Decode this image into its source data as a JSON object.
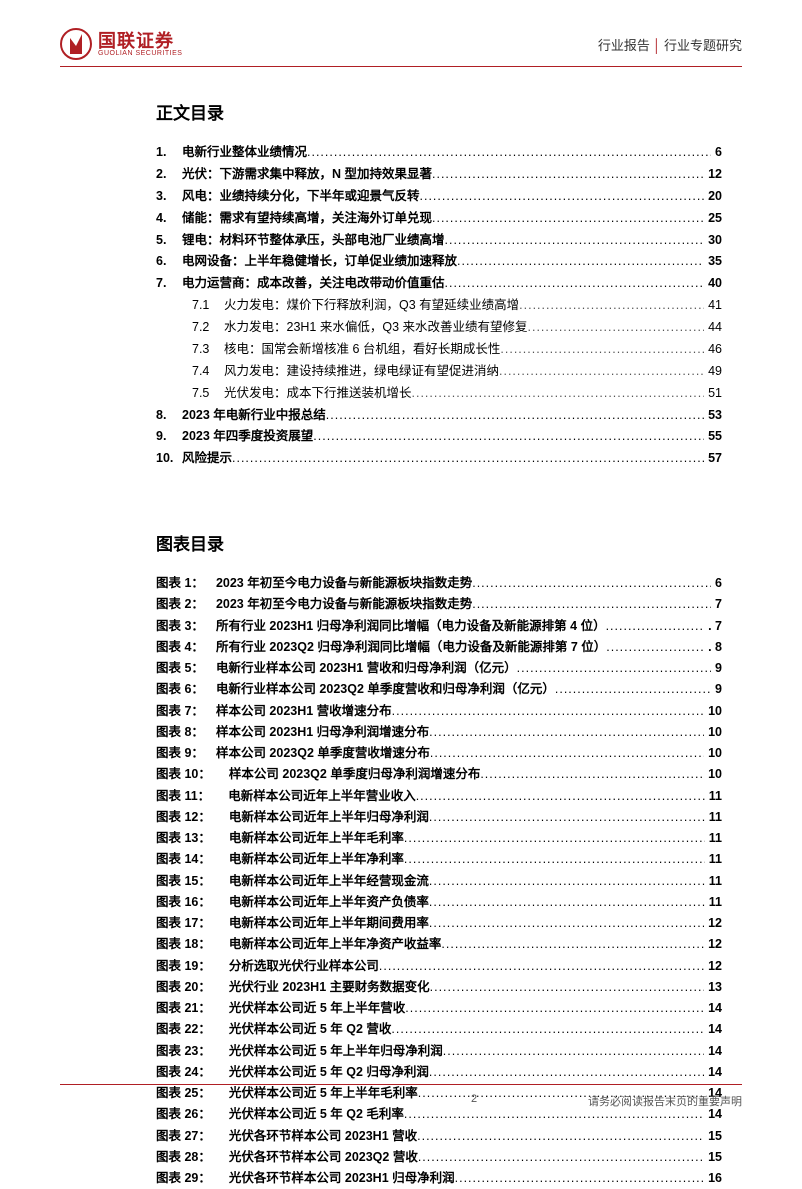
{
  "header": {
    "logo_cn": "国联证券",
    "logo_en": "GUOLIAN SECURITIES",
    "right_a": "行业报告",
    "right_b": "行业专题研究",
    "logo_color": "#b01f24"
  },
  "toc": {
    "title": "正文目录",
    "items": [
      {
        "num": "1.",
        "label": "电新行业整体业绩情况",
        "page": "6",
        "sub": false
      },
      {
        "num": "2.",
        "label": "光伏：下游需求集中释放，N 型加持效果显著",
        "page": "12",
        "sub": false
      },
      {
        "num": "3.",
        "label": "风电：业绩持续分化，下半年或迎景气反转",
        "page": "20",
        "sub": false
      },
      {
        "num": "4.",
        "label": "储能：需求有望持续高增，关注海外订单兑现",
        "page": "25",
        "sub": false
      },
      {
        "num": "5.",
        "label": "锂电：材料环节整体承压，头部电池厂业绩高增",
        "page": "30",
        "sub": false
      },
      {
        "num": "6.",
        "label": "电网设备：上半年稳健增长，订单促业绩加速释放",
        "page": "35",
        "sub": false
      },
      {
        "num": "7.",
        "label": "电力运营商：成本改善，关注电改带动价值重估",
        "page": "40",
        "sub": false
      },
      {
        "num": "7.1",
        "label": "火力发电：煤价下行释放利润，Q3 有望延续业绩高增",
        "page": "41",
        "sub": true
      },
      {
        "num": "7.2",
        "label": "水力发电：23H1 来水偏低，Q3 来水改善业绩有望修复",
        "page": "44",
        "sub": true
      },
      {
        "num": "7.3",
        "label": "核电：国常会新增核准 6 台机组，看好长期成长性",
        "page": "46",
        "sub": true
      },
      {
        "num": "7.4",
        "label": "风力发电：建设持续推进，绿电绿证有望促进消纳",
        "page": "49",
        "sub": true
      },
      {
        "num": "7.5",
        "label": "光伏发电：成本下行推送装机增长",
        "page": "51",
        "sub": true
      },
      {
        "num": "8.",
        "label": "2023 年电新行业中报总结",
        "page": "53",
        "sub": false
      },
      {
        "num": "9.",
        "label": "2023 年四季度投资展望",
        "page": "55",
        "sub": false
      },
      {
        "num": "10.",
        "label": "风险提示",
        "page": "57",
        "sub": false
      }
    ]
  },
  "figures": {
    "title": "图表目录",
    "items": [
      {
        "key": "图表 1：",
        "label": "2023 年初至今电力设备与新能源板块指数走势",
        "page": "6"
      },
      {
        "key": "图表 2：",
        "label": "2023 年初至今电力设备与新能源板块指数走势",
        "page": "7"
      },
      {
        "key": "图表 3：",
        "label": "所有行业 2023H1 归母净利润同比增幅（电力设备及新能源排第 4 位）",
        "page": ". 7"
      },
      {
        "key": "图表 4：",
        "label": "所有行业 2023Q2 归母净利润同比增幅（电力设备及新能源排第 7 位）",
        "page": ". 8"
      },
      {
        "key": "图表 5：",
        "label": "电新行业样本公司 2023H1 营收和归母净利润（亿元）",
        "page": "9"
      },
      {
        "key": "图表 6：",
        "label": "电新行业样本公司 2023Q2 单季度营收和归母净利润（亿元）",
        "page": "9"
      },
      {
        "key": "图表 7：",
        "label": "样本公司 2023H1 营收增速分布",
        "page": "10"
      },
      {
        "key": "图表 8：",
        "label": "样本公司 2023H1 归母净利润增速分布",
        "page": "10"
      },
      {
        "key": "图表 9：",
        "label": "样本公司 2023Q2 单季度营收增速分布",
        "page": "10"
      },
      {
        "key": "图表 10：",
        "label": "样本公司 2023Q2 单季度归母净利润增速分布",
        "page": "10",
        "wide": true
      },
      {
        "key": "图表 11：",
        "label": "电新样本公司近年上半年营业收入",
        "page": "11",
        "wide": true
      },
      {
        "key": "图表 12：",
        "label": "电新样本公司近年上半年归母净利润",
        "page": "11",
        "wide": true
      },
      {
        "key": "图表 13：",
        "label": "电新样本公司近年上半年毛利率",
        "page": "11",
        "wide": true
      },
      {
        "key": "图表 14：",
        "label": "电新样本公司近年上半年净利率",
        "page": "11",
        "wide": true
      },
      {
        "key": "图表 15：",
        "label": "电新样本公司近年上半年经营现金流",
        "page": "11",
        "wide": true
      },
      {
        "key": "图表 16：",
        "label": "电新样本公司近年上半年资产负债率",
        "page": "11",
        "wide": true
      },
      {
        "key": "图表 17：",
        "label": "电新样本公司近年上半年期间费用率",
        "page": "12",
        "wide": true
      },
      {
        "key": "图表 18：",
        "label": "电新样本公司近年上半年净资产收益率",
        "page": "12",
        "wide": true
      },
      {
        "key": "图表 19：",
        "label": "分析选取光伏行业样本公司",
        "page": "12",
        "wide": true
      },
      {
        "key": "图表 20：",
        "label": "光伏行业 2023H1 主要财务数据变化",
        "page": "13",
        "wide": true
      },
      {
        "key": "图表 21：",
        "label": "光伏样本公司近 5 年上半年营收",
        "page": "14",
        "wide": true
      },
      {
        "key": "图表 22：",
        "label": "光伏样本公司近 5 年 Q2 营收",
        "page": "14",
        "wide": true
      },
      {
        "key": "图表 23：",
        "label": "光伏样本公司近 5 年上半年归母净利润",
        "page": "14",
        "wide": true
      },
      {
        "key": "图表 24：",
        "label": "光伏样本公司近 5 年 Q2 归母净利润",
        "page": "14",
        "wide": true
      },
      {
        "key": "图表 25：",
        "label": "光伏样本公司近 5 年上半年毛利率",
        "page": "14",
        "wide": true
      },
      {
        "key": "图表 26：",
        "label": "光伏样本公司近 5 年 Q2 毛利率",
        "page": "14",
        "wide": true
      },
      {
        "key": "图表 27：",
        "label": "光伏各环节样本公司 2023H1 营收",
        "page": "15",
        "wide": true
      },
      {
        "key": "图表 28：",
        "label": "光伏各环节样本公司 2023Q2 营收",
        "page": "15",
        "wide": true
      },
      {
        "key": "图表 29：",
        "label": "光伏各环节样本公司 2023H1 归母净利润",
        "page": "16",
        "wide": true
      }
    ]
  },
  "footer": {
    "page": "2",
    "disclaimer": "请务必阅读报告末页的重要声明"
  }
}
